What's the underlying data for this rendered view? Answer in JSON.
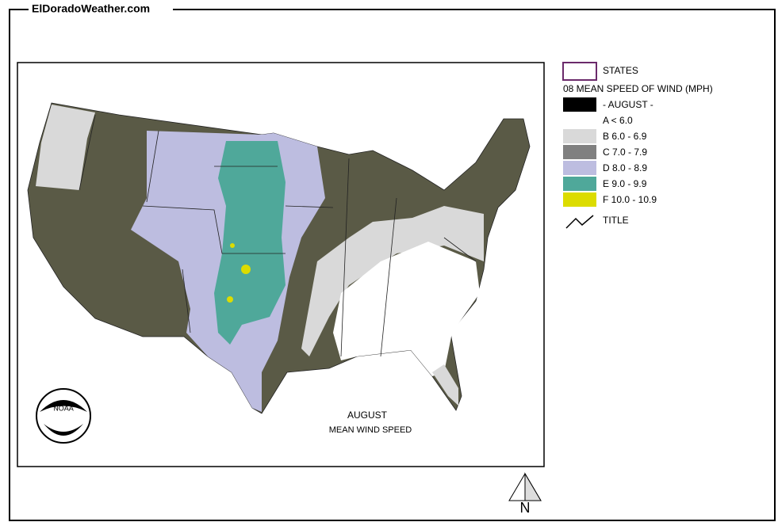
{
  "header": {
    "site": "ElDoradoWeather.com"
  },
  "map": {
    "caption_month": "AUGUST",
    "caption_title": "MEAN WIND SPEED",
    "logo": "NOAA",
    "north": "N"
  },
  "legend": {
    "states": "STATES",
    "subtitle": "08 MEAN SPEED OF WIND (MPH)",
    "items": [
      {
        "label": "- AUGUST -",
        "color": "#000000"
      },
      {
        "label": "A < 6.0",
        "color": "#ffffff"
      },
      {
        "label": "B 6.0 - 6.9",
        "color": "#d9d9d9"
      },
      {
        "label": "C 7.0 - 7.9",
        "color": "#808080"
      },
      {
        "label": "D 8.0 - 8.9",
        "color": "#bdbde0"
      },
      {
        "label": "E 9.0 - 9.9",
        "color": "#4fa89a"
      },
      {
        "label": "F 10.0 - 10.9",
        "color": "#dcdc00"
      }
    ],
    "title_symbol": "TITLE"
  }
}
